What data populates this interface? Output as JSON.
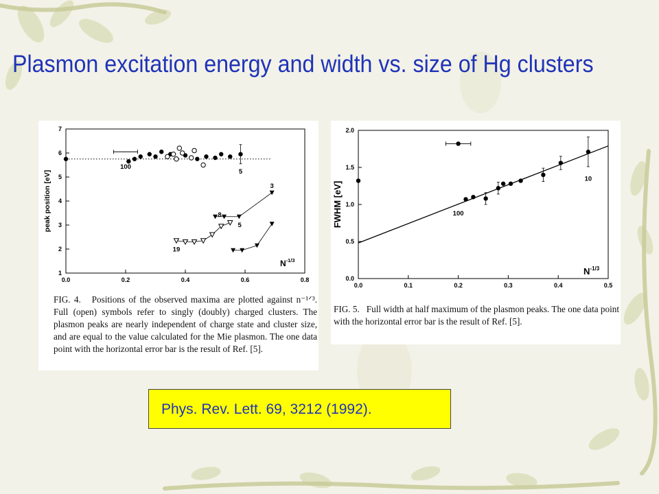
{
  "slide": {
    "title": "Plasmon excitation energy and width vs. size of Hg clusters",
    "reference": "Phys. Rev. Lett. 69, 3212 (1992)."
  },
  "colors": {
    "title": "#1f33b8",
    "reference_bg": "#ffff00",
    "background": "#f3f2e8"
  },
  "chart_data": [
    {
      "type": "scatter",
      "xlabel": "N",
      "xlabel_sup": "-1/3",
      "ylabel": "peak position [eV]",
      "xlim": [
        0.0,
        0.8
      ],
      "ylim": [
        1,
        7
      ],
      "xticks": [
        "0.0",
        "0.2",
        "0.4",
        "0.6",
        "0.8"
      ],
      "yticks": [
        "1",
        "2",
        "3",
        "4",
        "5",
        "6",
        "7"
      ],
      "reference_line": {
        "y": 5.75,
        "style": "dotted"
      },
      "annotations": [
        {
          "text": "100",
          "x": 0.2,
          "y": 5.35
        },
        {
          "text": "5",
          "x": 0.585,
          "y": 5.15
        },
        {
          "text": "3",
          "x": 0.69,
          "y": 4.55
        },
        {
          "text": "8",
          "x": 0.515,
          "y": 3.35
        },
        {
          "text": "5",
          "x": 0.582,
          "y": 2.92
        },
        {
          "text": "19",
          "x": 0.37,
          "y": 1.9
        }
      ],
      "series": [
        {
          "marker": "filled-circle",
          "x": [
            0.0,
            0.21,
            0.23,
            0.25,
            0.28,
            0.3,
            0.32,
            0.35,
            0.4,
            0.44,
            0.47,
            0.5,
            0.52,
            0.55,
            0.585
          ],
          "y": [
            5.75,
            5.65,
            5.75,
            5.85,
            5.95,
            5.85,
            6.05,
            5.95,
            5.9,
            5.75,
            5.85,
            5.8,
            5.95,
            5.85,
            5.95
          ]
        },
        {
          "marker": "open-circle",
          "x": [
            0.34,
            0.36,
            0.37,
            0.38,
            0.39,
            0.42,
            0.43,
            0.46
          ],
          "y": [
            5.85,
            5.95,
            5.75,
            6.2,
            6.0,
            5.8,
            6.1,
            5.5
          ]
        },
        {
          "marker": "filled-triangle",
          "connected": true,
          "x": [
            0.5,
            0.53,
            0.58,
            0.69
          ],
          "y": [
            3.35,
            3.35,
            3.35,
            4.35
          ]
        },
        {
          "marker": "open-triangle",
          "connected": true,
          "x": [
            0.37,
            0.4,
            0.43,
            0.46,
            0.49,
            0.52,
            0.55
          ],
          "y": [
            2.35,
            2.3,
            2.3,
            2.35,
            2.6,
            2.95,
            3.1
          ]
        },
        {
          "marker": "filled-triangle",
          "connected": true,
          "x": [
            0.56,
            0.59,
            0.64,
            0.69
          ],
          "y": [
            1.95,
            1.95,
            2.15,
            3.05
          ]
        }
      ],
      "error_bars": [
        {
          "x": 0.2,
          "y": 6.05,
          "xerr": 0.04,
          "yerr": 0
        },
        {
          "x": 0.585,
          "y": 5.95,
          "xerr": 0,
          "yerr": 0.4
        }
      ],
      "caption_label": "FIG. 4.",
      "caption": "Positions of the observed maxima are plotted against n⁻¹ᐟ³. Full (open) symbols refer to singly (doubly) charged clusters. The plasmon peaks are nearly independent of charge state and cluster size, and are equal to the value calculated for the Mie plasmon. The one data point with the horizontal error bar is the result of Ref. [5]."
    },
    {
      "type": "scatter",
      "xlabel": "N",
      "xlabel_sup": "-1/3",
      "ylabel": "FWHM [eV]",
      "xlim": [
        0.0,
        0.5
      ],
      "ylim": [
        0.0,
        2.0
      ],
      "xticks": [
        "0.0",
        "0.1",
        "0.2",
        "0.3",
        "0.4",
        "0.5"
      ],
      "yticks": [
        "0.0",
        "0.5",
        "1.0",
        "1.5",
        "2.0"
      ],
      "fit_line": {
        "x": [
          0.0,
          0.5
        ],
        "y": [
          0.48,
          1.79
        ]
      },
      "annotations": [
        {
          "text": "100",
          "x": 0.2,
          "y": 0.85
        },
        {
          "text": "10",
          "x": 0.46,
          "y": 1.32
        }
      ],
      "series": [
        {
          "marker": "filled-circle",
          "x": [
            0.0,
            0.215,
            0.23,
            0.255,
            0.28,
            0.29,
            0.305,
            0.325,
            0.37,
            0.405,
            0.46
          ],
          "y": [
            1.32,
            1.07,
            1.1,
            1.08,
            1.22,
            1.28,
            1.28,
            1.32,
            1.4,
            1.56,
            1.71
          ]
        },
        {
          "marker": "filled-circle",
          "x": [
            0.2
          ],
          "y": [
            1.82
          ]
        }
      ],
      "error_bars": [
        {
          "x": 0.2,
          "y": 1.82,
          "xerr": 0.025,
          "yerr": 0
        },
        {
          "x": 0.46,
          "y": 1.71,
          "xerr": 0,
          "yerr": 0.2
        },
        {
          "x": 0.405,
          "y": 1.56,
          "xerr": 0,
          "yerr": 0.09
        },
        {
          "x": 0.37,
          "y": 1.4,
          "xerr": 0,
          "yerr": 0.09
        },
        {
          "x": 0.255,
          "y": 1.08,
          "xerr": 0,
          "yerr": 0.08
        },
        {
          "x": 0.28,
          "y": 1.22,
          "xerr": 0,
          "yerr": 0.08
        }
      ],
      "caption_label": "FIG. 5.",
      "caption": "Full width at half maximum of the plasmon peaks. The one data point with the horizontal error bar is the result of Ref. [5]."
    }
  ]
}
